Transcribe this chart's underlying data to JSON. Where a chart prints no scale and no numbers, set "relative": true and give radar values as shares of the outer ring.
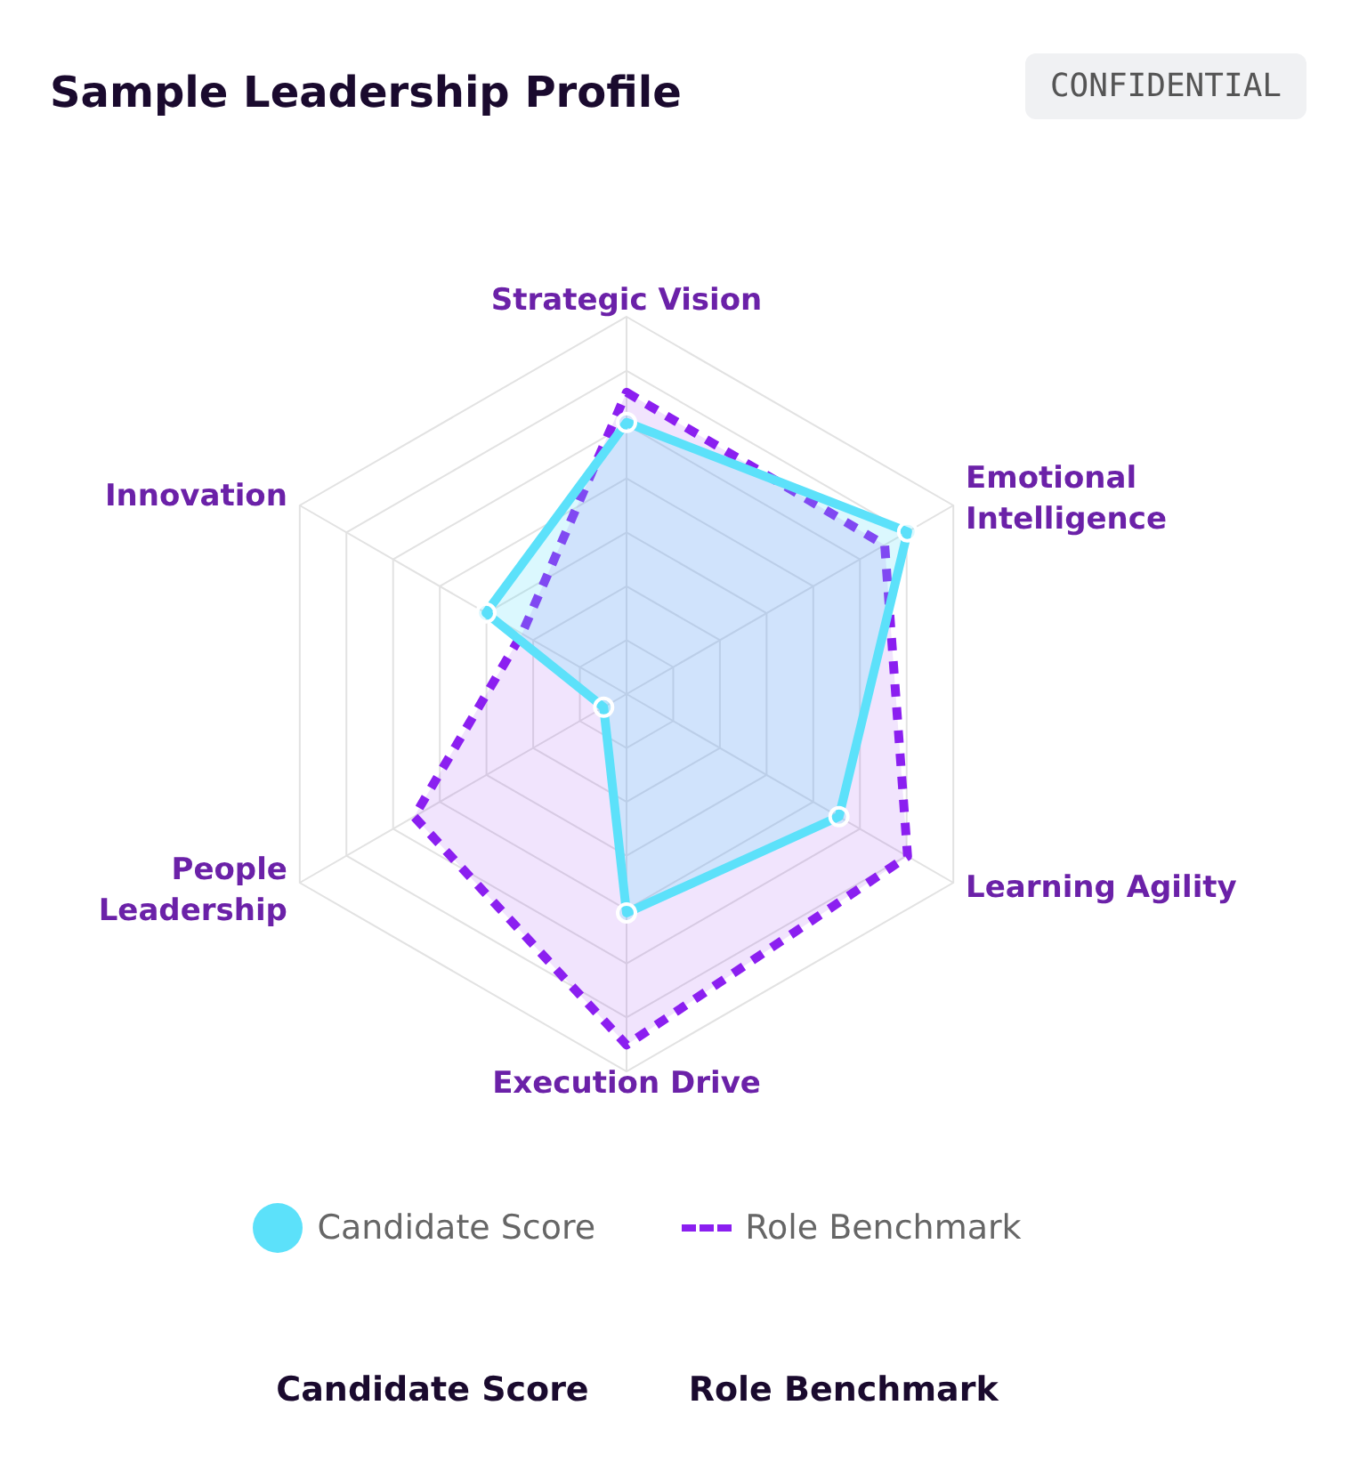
{
  "chart_data": {
    "type": "radar",
    "title": "Sample Leadership Profile",
    "relative": true,
    "grid": true,
    "legend": "bottom",
    "categories": [
      "Strategic Vision",
      "Emotional Intelligence",
      "Learning Agility",
      "Execution Drive",
      "People Leadership",
      "Innovation"
    ],
    "series": [
      {
        "name": "Candidate Score",
        "color": "#5ce1fa",
        "values": [
          0.72,
          0.86,
          0.65,
          0.58,
          0.07,
          0.43
        ],
        "marker": "circle",
        "line_style": "solid"
      },
      {
        "name": "Role Benchmark",
        "color": "#8b1ff0",
        "values": [
          0.8,
          0.79,
          0.86,
          0.93,
          0.65,
          0.32
        ],
        "marker": "none",
        "line_style": "dashed"
      }
    ],
    "annotations": [
      "CONFIDENTIAL",
      "Candidate Score",
      "Role Benchmark"
    ]
  }
}
